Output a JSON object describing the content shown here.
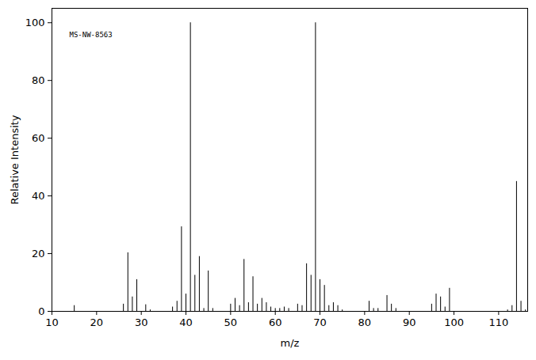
{
  "chart_data": {
    "type": "bar",
    "annotation": "MS-NW-8563",
    "x_label": "m/z",
    "y_label": "Relative Intensity",
    "x": [
      15,
      26,
      27,
      28,
      29,
      31,
      32,
      37,
      38,
      39,
      40,
      41,
      42,
      43,
      44,
      45,
      46,
      50,
      51,
      52,
      53,
      54,
      55,
      56,
      57,
      58,
      59,
      60,
      61,
      62,
      63,
      65,
      66,
      67,
      68,
      69,
      70,
      71,
      72,
      73,
      74,
      75,
      81,
      82,
      83,
      85,
      86,
      87,
      95,
      96,
      97,
      98,
      99,
      112,
      113,
      114,
      115,
      116
    ],
    "values": [
      2,
      2.5,
      20.3,
      5,
      11,
      2.3,
      0.5,
      1.5,
      3.5,
      29.3,
      6,
      100,
      12.5,
      19,
      1,
      14,
      1,
      2.5,
      4.5,
      2,
      18,
      3,
      12,
      2.5,
      4.5,
      3,
      1.5,
      1,
      1,
      1.5,
      1,
      2.5,
      2,
      16.5,
      12.5,
      100,
      11,
      9,
      2,
      3,
      2,
      0.5,
      3.5,
      1,
      1,
      5.5,
      2.5,
      1,
      2.5,
      6,
      5,
      1.5,
      8,
      0.5,
      2,
      45,
      3.5,
      0.5
    ],
    "color": "#000000",
    "xlim": [
      10,
      116.5
    ],
    "xticks": [
      10,
      20,
      30,
      40,
      50,
      60,
      70,
      80,
      90,
      100,
      110
    ],
    "ylim": [
      0,
      105
    ],
    "yticks": [
      0,
      20,
      40,
      60,
      80,
      100
    ],
    "grid": false
  }
}
